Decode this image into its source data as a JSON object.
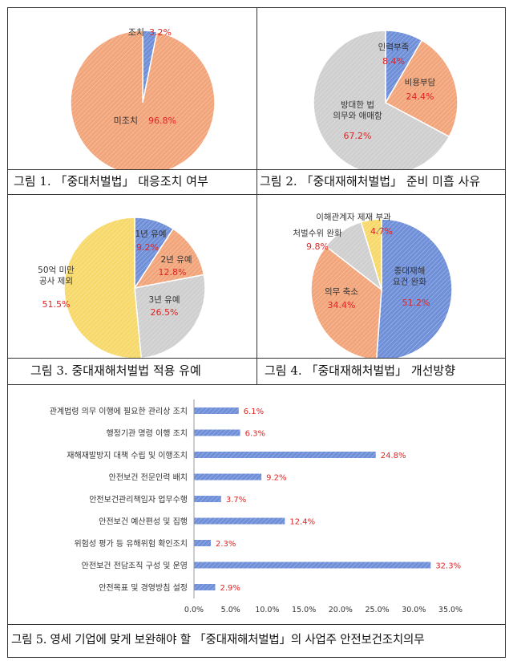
{
  "colors": {
    "blue": "#6f8fd8",
    "orange": "#f2a57a",
    "gray": "#cfcfcf",
    "yellow": "#f7d96b",
    "red": "#e02424",
    "label": "#333333"
  },
  "captions": {
    "fig1": "그림 1. 「중대처벌법」 대응조치 여부",
    "fig2": "그림 2. 「중대재해처벌법」 준비 미흡 사유",
    "fig3": "그림 3. 중대재해처벌법 적용 유예",
    "fig4": "그림 4. 「중대재해처벌법」 개선방향",
    "fig5": "그림 5. 영세 기업에 맞게 보완해야 할 「중대재해처벌법」의 사업주 안전보건조치의무"
  },
  "chart_data": [
    {
      "id": "fig1",
      "type": "pie",
      "slices": [
        {
          "label": "조치",
          "value": 3.2,
          "value_text": "3.2%",
          "color": "blue"
        },
        {
          "label": "미조치",
          "value": 96.8,
          "value_text": "96.8%",
          "color": "orange"
        }
      ]
    },
    {
      "id": "fig2",
      "type": "pie",
      "slices": [
        {
          "label": "인력부족",
          "value": 8.4,
          "value_text": "8.4%",
          "color": "blue"
        },
        {
          "label": "비용부담",
          "value": 24.4,
          "value_text": "24.4%",
          "color": "orange"
        },
        {
          "label": "방대한 법\n의무와 애매함",
          "value": 67.2,
          "value_text": "67.2%",
          "color": "gray"
        }
      ]
    },
    {
      "id": "fig3",
      "type": "pie",
      "slices": [
        {
          "label": "1년 유예",
          "value": 9.2,
          "value_text": "9.2%",
          "color": "blue"
        },
        {
          "label": "2년 유예",
          "value": 12.8,
          "value_text": "12.8%",
          "color": "orange"
        },
        {
          "label": "3년 유예",
          "value": 26.5,
          "value_text": "26.5%",
          "color": "gray"
        },
        {
          "label": "50억 미만\n공사 제외",
          "value": 51.5,
          "value_text": "51.5%",
          "color": "yellow"
        }
      ]
    },
    {
      "id": "fig4",
      "type": "pie",
      "slices": [
        {
          "label": "중대재해\n요건 완화",
          "value": 51.2,
          "value_text": "51.2%",
          "color": "blue"
        },
        {
          "label": "의무 축소",
          "value": 34.4,
          "value_text": "34.4%",
          "color": "orange"
        },
        {
          "label": "처벌수위 완화",
          "value": 9.8,
          "value_text": "9.8%",
          "color": "gray"
        },
        {
          "label": "이해관계자 제재 부과",
          "value": 4.7,
          "value_text": "4.7%",
          "color": "yellow"
        }
      ]
    },
    {
      "id": "fig5",
      "type": "bar",
      "orientation": "horizontal",
      "categories": [
        "관계법령 의무 이행에 필요한 관리상 조치",
        "행정기관 명령 이행 조치",
        "재해재발방지 대책 수립 및 이행조치",
        "안전보건 전문인력 배치",
        "안전보건관리책임자 업무수행",
        "안전보건 예산편성 및 집행",
        "위험성 평가 등 유해위험 확인조치",
        "안전보건 전담조직 구성 및 운영",
        "안전목표 및 경영방침 설정"
      ],
      "values": [
        6.1,
        6.3,
        24.8,
        9.2,
        3.7,
        12.4,
        2.3,
        32.3,
        2.9
      ],
      "value_labels": [
        "6.1%",
        "6.3%",
        "24.8%",
        "9.2%",
        "3.7%",
        "12.4%",
        "2.3%",
        "32.3%",
        "2.9%"
      ],
      "xlim": [
        0,
        35
      ],
      "xticks": [
        "0.0%",
        "5.0%",
        "10.0%",
        "15.0%",
        "20.0%",
        "25.0%",
        "30.0%",
        "35.0%"
      ],
      "grid": false
    }
  ]
}
